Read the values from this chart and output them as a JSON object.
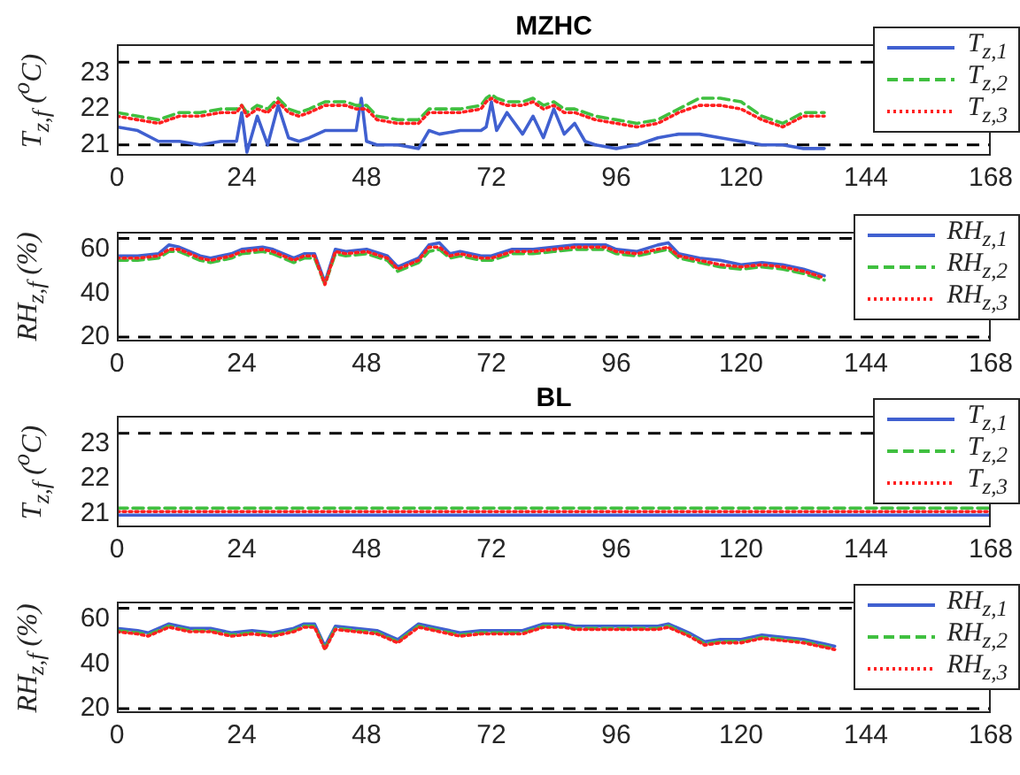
{
  "chart_data": [
    {
      "type": "line",
      "title": "MZHC",
      "ylabel": "T$_{z,f}$ ($^{o}$C)",
      "xlim": [
        0,
        168
      ],
      "xticks": [
        0,
        24,
        48,
        72,
        96,
        120,
        144,
        168
      ],
      "ylim": [
        20.7,
        23.8
      ],
      "yticks": [
        21,
        22,
        23
      ],
      "grid": false,
      "legend": "top right",
      "x": [
        0,
        4,
        8,
        12,
        16,
        20,
        23,
        24,
        25,
        27,
        29,
        31,
        33,
        35,
        37,
        40,
        44,
        46,
        47,
        48,
        50,
        54,
        58,
        60,
        62,
        66,
        70,
        71,
        72,
        73,
        75,
        78,
        80,
        82,
        84,
        86,
        88,
        90,
        92,
        96,
        100,
        104,
        108,
        112,
        116,
        120,
        124,
        128,
        132,
        136
      ],
      "series": [
        {
          "name": "T$_{z,1}$",
          "color": "#4060d0",
          "line_style": "solid",
          "values": [
            21.5,
            21.4,
            21.1,
            21.1,
            21.0,
            21.1,
            21.1,
            21.9,
            20.8,
            21.8,
            21.0,
            22.1,
            21.2,
            21.1,
            21.2,
            21.4,
            21.4,
            21.4,
            22.3,
            21.1,
            21.0,
            21.0,
            20.9,
            21.4,
            21.3,
            21.4,
            21.4,
            21.5,
            22.2,
            21.4,
            21.9,
            21.3,
            21.8,
            21.2,
            22.0,
            21.3,
            21.6,
            21.1,
            21.0,
            20.9,
            21.0,
            21.2,
            21.3,
            21.3,
            21.2,
            21.1,
            21.0,
            21.0,
            20.9,
            20.9
          ]
        },
        {
          "name": "T$_{z,2}$",
          "color": "#40c040",
          "line_style": "dashed",
          "values": [
            21.9,
            21.8,
            21.7,
            21.9,
            21.9,
            22.0,
            22.0,
            22.1,
            21.9,
            22.1,
            22.0,
            22.3,
            22.0,
            21.9,
            22.0,
            22.2,
            22.2,
            22.1,
            22.1,
            22.1,
            21.8,
            21.7,
            21.7,
            22.0,
            22.0,
            22.0,
            22.1,
            22.3,
            22.4,
            22.3,
            22.2,
            22.2,
            22.3,
            22.1,
            22.2,
            22.0,
            22.0,
            21.9,
            21.8,
            21.7,
            21.6,
            21.7,
            22.0,
            22.3,
            22.3,
            22.2,
            21.8,
            21.6,
            21.9,
            21.9
          ]
        },
        {
          "name": "T$_{z,3}$",
          "color": "#ff2020",
          "line_style": "dotted",
          "values": [
            21.8,
            21.7,
            21.6,
            21.8,
            21.8,
            21.9,
            21.9,
            22.1,
            21.8,
            22.0,
            21.9,
            22.2,
            21.9,
            21.8,
            21.9,
            22.1,
            22.1,
            22.0,
            22.0,
            22.0,
            21.7,
            21.6,
            21.6,
            21.9,
            21.9,
            21.9,
            22.0,
            22.2,
            22.3,
            22.2,
            22.1,
            22.1,
            22.2,
            22.0,
            22.1,
            21.9,
            21.9,
            21.8,
            21.7,
            21.6,
            21.5,
            21.6,
            21.9,
            22.1,
            22.1,
            22.0,
            21.7,
            21.5,
            21.8,
            21.8
          ]
        }
      ],
      "ref_lines": [
        {
          "axis": "y",
          "value": 23.3,
          "color": "#000000",
          "line_style": "dashed"
        },
        {
          "axis": "y",
          "value": 21,
          "color": "#000000",
          "line_style": "dashed"
        }
      ]
    },
    {
      "type": "line",
      "ylabel": "RH$_{z,f}$ (%)",
      "xlim": [
        0,
        168
      ],
      "xticks": [
        0,
        24,
        48,
        72,
        96,
        120,
        144,
        168
      ],
      "ylim": [
        18,
        68
      ],
      "yticks": [
        20,
        40,
        60
      ],
      "grid": false,
      "legend": "top right",
      "x": [
        0,
        4,
        8,
        10,
        12,
        16,
        18,
        22,
        24,
        28,
        30,
        34,
        36,
        38,
        40,
        42,
        44,
        48,
        52,
        54,
        58,
        60,
        62,
        64,
        66,
        70,
        72,
        76,
        80,
        84,
        88,
        90,
        94,
        96,
        100,
        104,
        106,
        108,
        112,
        116,
        120,
        124,
        128,
        132,
        136
      ],
      "series": [
        {
          "name": "RH$_{z,1}$",
          "color": "#4060d0",
          "line_style": "solid",
          "values": [
            57,
            57,
            58,
            62,
            61,
            57,
            56,
            58,
            60,
            61,
            60,
            56,
            58,
            58,
            45,
            60,
            59,
            60,
            57,
            52,
            56,
            62,
            63,
            58,
            59,
            57,
            57,
            60,
            60,
            61,
            62,
            62,
            62,
            60,
            59,
            62,
            63,
            58,
            56,
            55,
            53,
            54,
            53,
            51,
            48
          ]
        },
        {
          "name": "RH$_{z,2}$",
          "color": "#40c040",
          "line_style": "dashed",
          "values": [
            55,
            55,
            56,
            59,
            59,
            55,
            54,
            56,
            58,
            59,
            58,
            54,
            56,
            56,
            44,
            58,
            57,
            58,
            55,
            50,
            54,
            59,
            60,
            56,
            57,
            55,
            55,
            58,
            58,
            59,
            60,
            60,
            60,
            58,
            57,
            59,
            60,
            56,
            54,
            52,
            51,
            52,
            51,
            49,
            46
          ]
        },
        {
          "name": "RH$_{z,3}$",
          "color": "#ff2020",
          "line_style": "dotted",
          "values": [
            56,
            56,
            57,
            60,
            60,
            56,
            55,
            57,
            59,
            60,
            59,
            55,
            57,
            57,
            44,
            59,
            58,
            59,
            56,
            51,
            55,
            61,
            61,
            57,
            58,
            56,
            56,
            59,
            59,
            60,
            61,
            61,
            61,
            59,
            58,
            60,
            61,
            57,
            55,
            53,
            52,
            53,
            52,
            50,
            47
          ]
        }
      ],
      "ref_lines": [
        {
          "axis": "y",
          "value": 65,
          "color": "#000000",
          "line_style": "dashed"
        },
        {
          "axis": "y",
          "value": 20,
          "color": "#000000",
          "line_style": "dashed"
        }
      ]
    },
    {
      "type": "line",
      "title": "BL",
      "ylabel": "T$_{z,f}$ ($^{o}$C)",
      "xlim": [
        0,
        168
      ],
      "xticks": [
        0,
        24,
        48,
        72,
        96,
        120,
        144,
        168
      ],
      "ylim": [
        20.6,
        23.8
      ],
      "yticks": [
        21,
        22,
        23
      ],
      "grid": false,
      "legend": "top right",
      "x": [
        0,
        84,
        168
      ],
      "series": [
        {
          "name": "T$_{z,1}$",
          "color": "#4060d0",
          "line_style": "solid",
          "values": [
            20.95,
            20.95,
            20.95
          ]
        },
        {
          "name": "T$_{z,2}$",
          "color": "#40c040",
          "line_style": "dashed",
          "values": [
            21.15,
            21.15,
            21.15
          ]
        },
        {
          "name": "T$_{z,3}$",
          "color": "#ff2020",
          "line_style": "dotted",
          "values": [
            21.05,
            21.05,
            21.05
          ]
        }
      ],
      "ref_lines": [
        {
          "axis": "y",
          "value": 23.3,
          "color": "#000000",
          "line_style": "dashed"
        }
      ]
    },
    {
      "type": "line",
      "ylabel": "RH$_{z,f}$ (%)",
      "xlim": [
        0,
        168
      ],
      "xticks": [
        0,
        24,
        48,
        72,
        96,
        120,
        144,
        168
      ],
      "ylim": [
        18,
        68
      ],
      "yticks": [
        20,
        40,
        60
      ],
      "grid": false,
      "legend": "top right",
      "x": [
        0,
        4,
        6,
        10,
        14,
        18,
        22,
        26,
        30,
        34,
        36,
        38,
        40,
        42,
        46,
        50,
        54,
        58,
        62,
        66,
        70,
        74,
        78,
        82,
        86,
        88,
        90,
        100,
        104,
        106,
        110,
        113,
        116,
        120,
        124,
        128,
        132,
        136,
        138
      ],
      "series": [
        {
          "name": "RH$_{z,1}$",
          "color": "#4060d0",
          "line_style": "solid",
          "values": [
            56,
            55,
            54,
            58,
            56,
            56,
            54,
            55,
            54,
            56,
            58,
            58,
            48,
            57,
            56,
            55,
            51,
            58,
            56,
            54,
            55,
            55,
            55,
            58,
            58,
            57,
            57,
            57,
            57,
            58,
            54,
            50,
            51,
            51,
            53,
            52,
            51,
            49,
            48
          ]
        },
        {
          "name": "RH$_{z,2}$",
          "color": "#40c040",
          "line_style": "dashed",
          "values": [
            55,
            54,
            53,
            57,
            55,
            55,
            53,
            54,
            53,
            55,
            57,
            57,
            47,
            56,
            55,
            54,
            50,
            57,
            55,
            53,
            54,
            54,
            54,
            57,
            57,
            56,
            56,
            56,
            56,
            57,
            53,
            49,
            50,
            50,
            52,
            51,
            50,
            48,
            47
          ]
        },
        {
          "name": "RH$_{z,3}$",
          "color": "#ff2020",
          "line_style": "dotted",
          "values": [
            54.5,
            53.5,
            52.5,
            56.5,
            54.5,
            54.5,
            52.5,
            53.5,
            52.5,
            54.5,
            56.5,
            56.5,
            46.5,
            55.5,
            54.5,
            53.5,
            49.5,
            56.5,
            54.5,
            52.5,
            53.5,
            53.5,
            53.5,
            56.5,
            56.5,
            55.5,
            55.5,
            55.5,
            55.5,
            56.5,
            52.5,
            48.5,
            49.5,
            49.5,
            51.5,
            50.5,
            49.5,
            47.5,
            46.5
          ]
        }
      ],
      "ref_lines": [
        {
          "axis": "y",
          "value": 65,
          "color": "#000000",
          "line_style": "dashed"
        },
        {
          "axis": "y",
          "value": 20,
          "color": "#000000",
          "line_style": "dashed"
        }
      ]
    }
  ]
}
